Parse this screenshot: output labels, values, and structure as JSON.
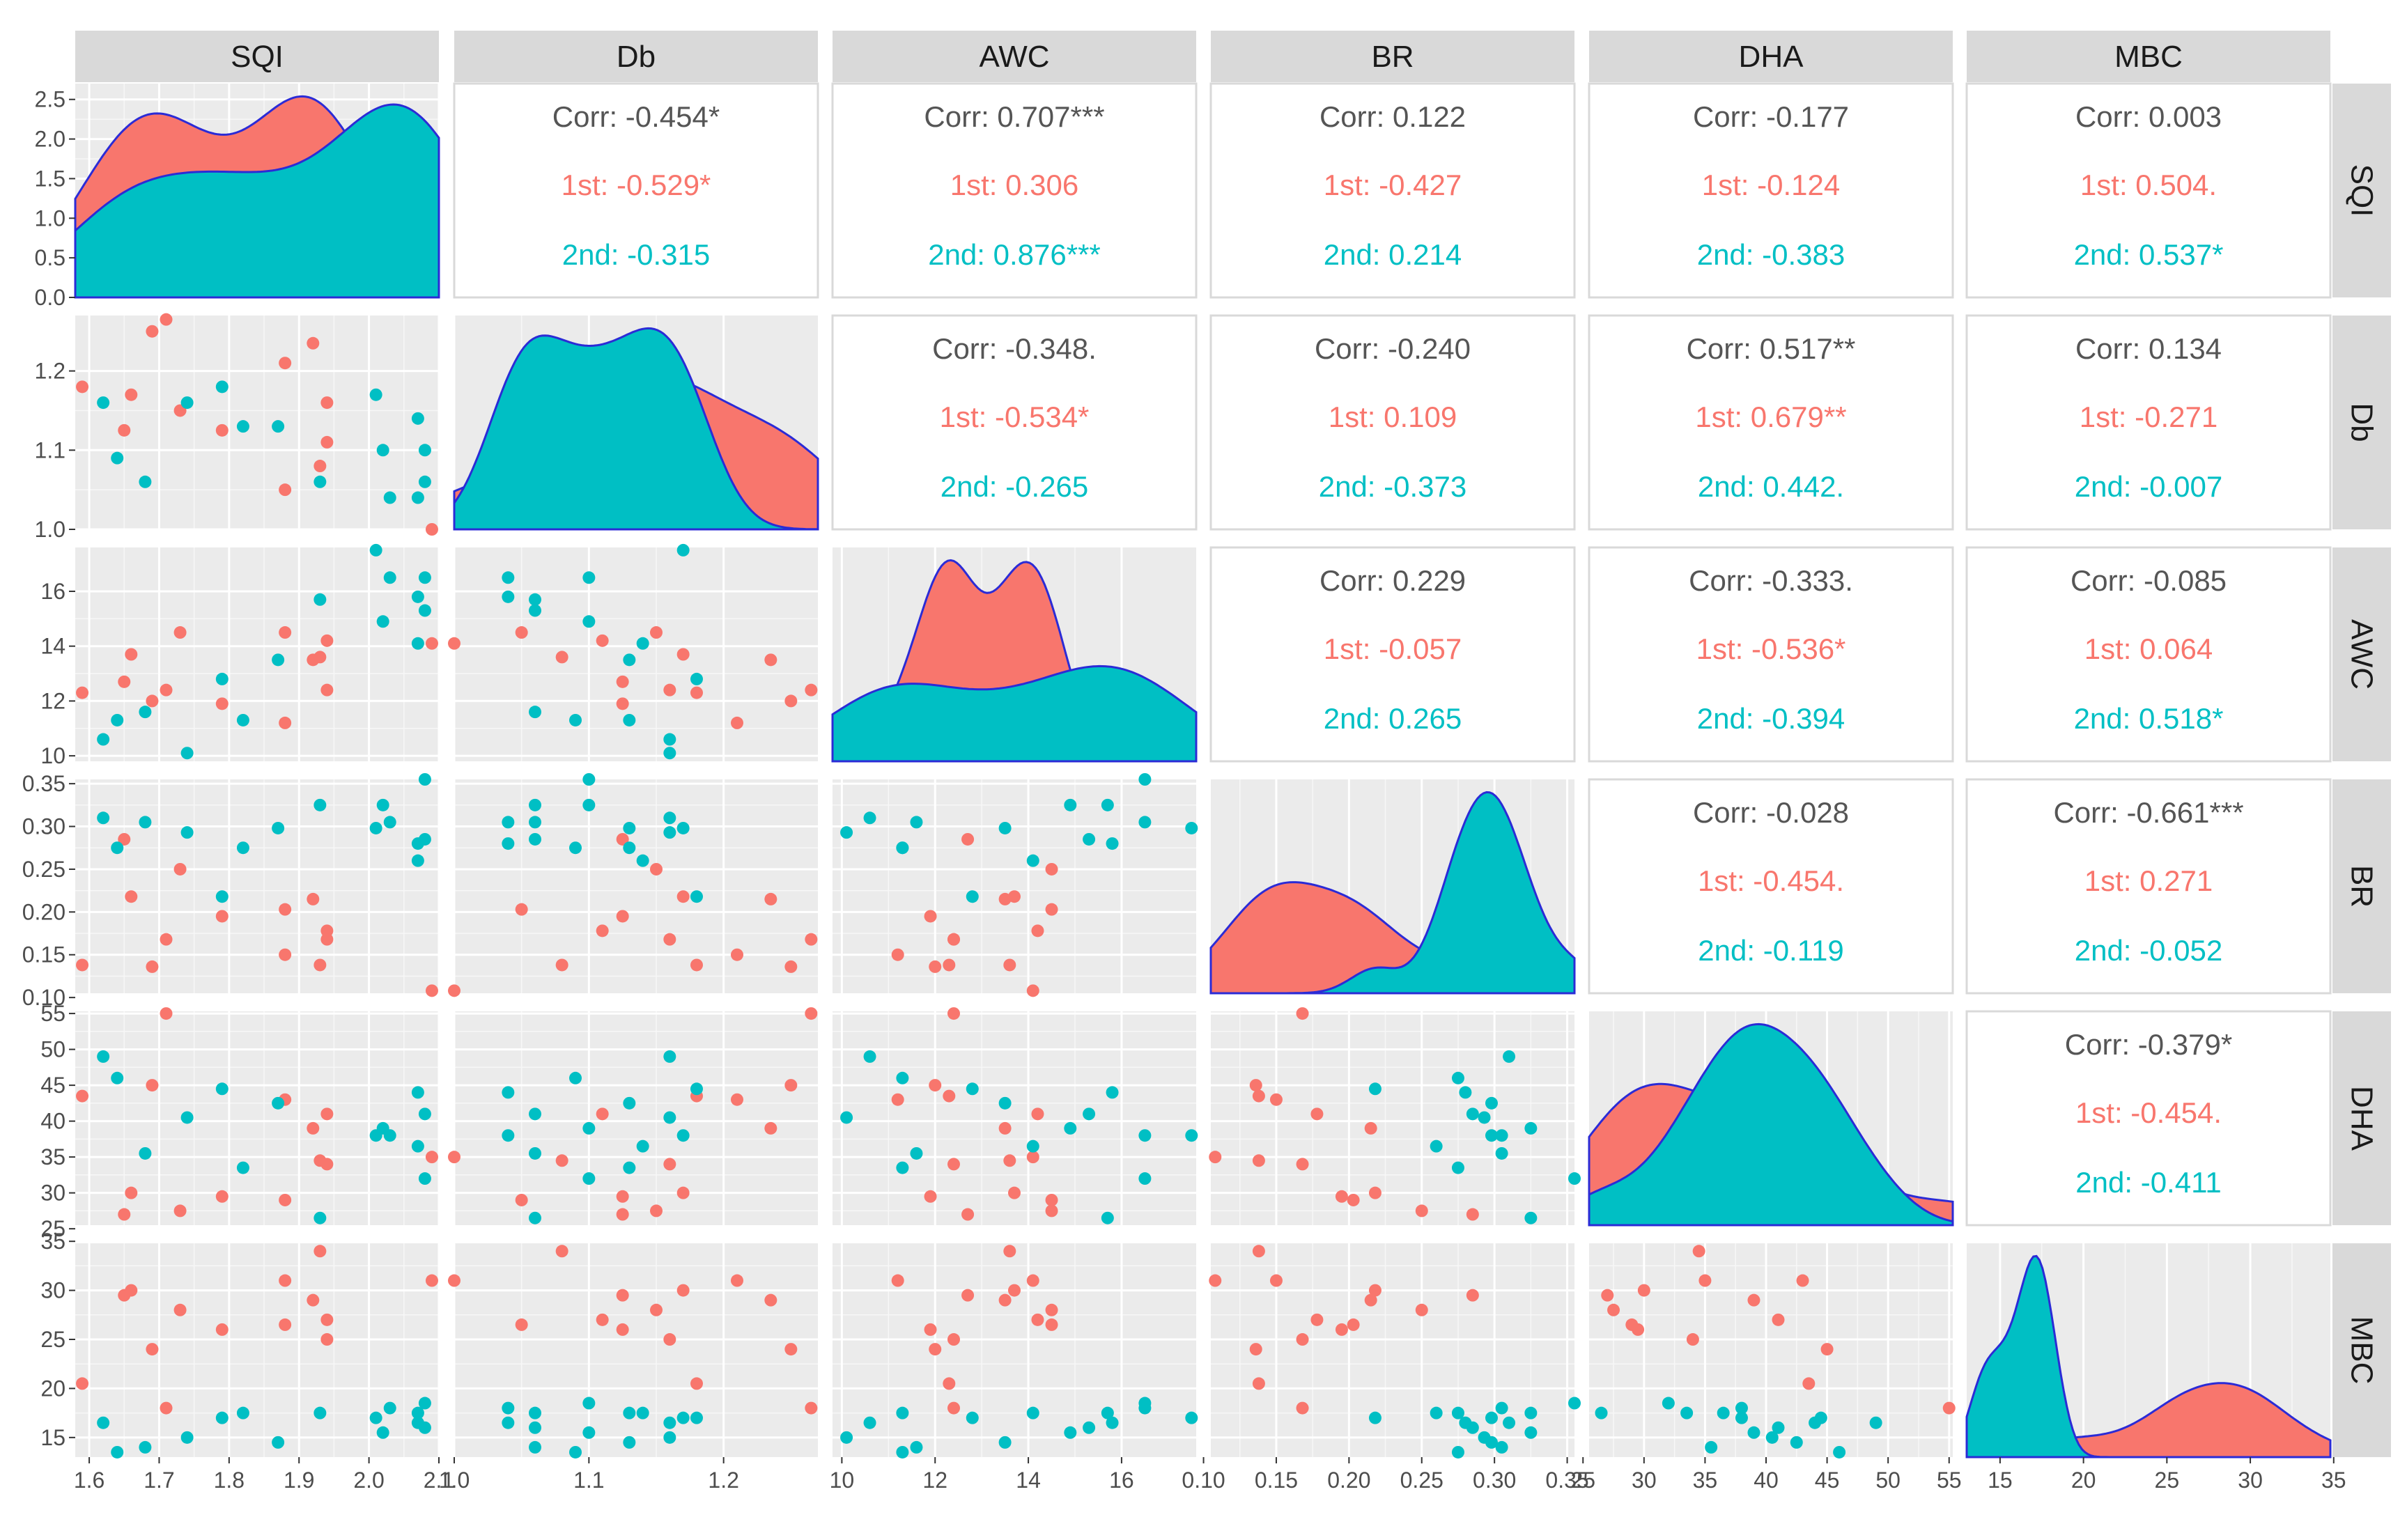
{
  "chart_data": {
    "type": "scatter-matrix",
    "title": "",
    "variables": [
      "SQI",
      "Db",
      "AWC",
      "BR",
      "DHA",
      "MBC"
    ],
    "groups": [
      {
        "name": "1st",
        "color": "#F8766D"
      },
      {
        "name": "2nd",
        "color": "#00BFC4"
      }
    ],
    "ranges": {
      "SQI": [
        1.58,
        2.1
      ],
      "Db": [
        1.0,
        1.27
      ],
      "AWC": [
        9.8,
        17.6
      ],
      "BR": [
        0.105,
        0.355
      ],
      "DHA": [
        25.5,
        55.3
      ],
      "MBC": [
        13.0,
        34.8
      ]
    },
    "axis_ticks": {
      "SQI": [
        "1.6",
        "1.7",
        "1.8",
        "1.9",
        "2.0",
        "2.1"
      ],
      "Db": [
        "1.0",
        "1.1",
        "1.2"
      ],
      "AWC": [
        "10",
        "12",
        "14",
        "16"
      ],
      "BR": [
        "0.10",
        "0.15",
        "0.20",
        "0.25",
        "0.30",
        "0.35"
      ],
      "DHA": [
        "25",
        "30",
        "35",
        "40",
        "45",
        "50",
        "55"
      ],
      "MBC": [
        "15",
        "20",
        "25",
        "30",
        "35"
      ]
    },
    "diag_y_ticks": [
      "0.0",
      "0.5",
      "1.0",
      "1.5",
      "2.0",
      "2.5"
    ],
    "diag_y_max": 2.7,
    "correlations": [
      {
        "row": 0,
        "col": 1,
        "corr": "Corr: -0.454*",
        "first": "1st: -0.529*",
        "second": "2nd: -0.315"
      },
      {
        "row": 0,
        "col": 2,
        "corr": "Corr: 0.707***",
        "first": "1st: 0.306",
        "second": "2nd: 0.876***"
      },
      {
        "row": 0,
        "col": 3,
        "corr": "Corr: 0.122",
        "first": "1st: -0.427",
        "second": "2nd: 0.214"
      },
      {
        "row": 0,
        "col": 4,
        "corr": "Corr: -0.177",
        "first": "1st: -0.124",
        "second": "2nd: -0.383"
      },
      {
        "row": 0,
        "col": 5,
        "corr": "Corr: 0.003",
        "first": "1st: 0.504.",
        "second": "2nd: 0.537*"
      },
      {
        "row": 1,
        "col": 2,
        "corr": "Corr: -0.348.",
        "first": "1st: -0.534*",
        "second": "2nd: -0.265"
      },
      {
        "row": 1,
        "col": 3,
        "corr": "Corr: -0.240",
        "first": "1st: 0.109",
        "second": "2nd: -0.373"
      },
      {
        "row": 1,
        "col": 4,
        "corr": "Corr: 0.517**",
        "first": "1st: 0.679**",
        "second": "2nd: 0.442."
      },
      {
        "row": 1,
        "col": 5,
        "corr": "Corr: 0.134",
        "first": "1st: -0.271",
        "second": "2nd: -0.007"
      },
      {
        "row": 2,
        "col": 3,
        "corr": "Corr: 0.229",
        "first": "1st: -0.057",
        "second": "2nd: 0.265"
      },
      {
        "row": 2,
        "col": 4,
        "corr": "Corr: -0.333.",
        "first": "1st: -0.536*",
        "second": "2nd: -0.394"
      },
      {
        "row": 2,
        "col": 5,
        "corr": "Corr: -0.085",
        "first": "1st: 0.064",
        "second": "2nd: 0.518*"
      },
      {
        "row": 3,
        "col": 4,
        "corr": "Corr: -0.028",
        "first": "1st: -0.454.",
        "second": "2nd: -0.119"
      },
      {
        "row": 3,
        "col": 5,
        "corr": "Corr: -0.661***",
        "first": "1st: 0.271",
        "second": "2nd: -0.052"
      },
      {
        "row": 4,
        "col": 5,
        "corr": "Corr: -0.379*",
        "first": "1st: -0.454.",
        "second": "2nd: -0.411"
      }
    ],
    "observations": {
      "1st": [
        {
          "SQI": 1.59,
          "Db": 1.18,
          "AWC": 12.3,
          "BR": 0.138,
          "DHA": 43.5,
          "MBC": 20.5
        },
        {
          "SQI": 1.65,
          "Db": 1.125,
          "AWC": 12.7,
          "BR": 0.285,
          "DHA": 27.0,
          "MBC": 29.5
        },
        {
          "SQI": 1.66,
          "Db": 1.17,
          "AWC": 13.7,
          "BR": 0.218,
          "DHA": 30.0,
          "MBC": 30.0
        },
        {
          "SQI": 1.69,
          "Db": 1.25,
          "AWC": 12.0,
          "BR": 0.136,
          "DHA": 45.0,
          "MBC": 24.0
        },
        {
          "SQI": 1.71,
          "Db": 1.265,
          "AWC": 12.4,
          "BR": 0.168,
          "DHA": 55.0,
          "MBC": 18.0
        },
        {
          "SQI": 1.73,
          "Db": 1.15,
          "AWC": 14.5,
          "BR": 0.25,
          "DHA": 27.5,
          "MBC": 28.0
        },
        {
          "SQI": 1.79,
          "Db": 1.125,
          "AWC": 11.9,
          "BR": 0.195,
          "DHA": 29.5,
          "MBC": 26.0
        },
        {
          "SQI": 1.88,
          "Db": 1.21,
          "AWC": 11.2,
          "BR": 0.15,
          "DHA": 43.0,
          "MBC": 31.0
        },
        {
          "SQI": 1.88,
          "Db": 1.05,
          "AWC": 14.5,
          "BR": 0.203,
          "DHA": 29.0,
          "MBC": 26.5
        },
        {
          "SQI": 1.92,
          "Db": 1.235,
          "AWC": 13.5,
          "BR": 0.215,
          "DHA": 39.0,
          "MBC": 29.0
        },
        {
          "SQI": 1.93,
          "Db": 1.08,
          "AWC": 13.6,
          "BR": 0.138,
          "DHA": 34.5,
          "MBC": 34.0
        },
        {
          "SQI": 1.94,
          "Db": 1.11,
          "AWC": 14.2,
          "BR": 0.178,
          "DHA": 41.0,
          "MBC": 27.0
        },
        {
          "SQI": 1.94,
          "Db": 1.16,
          "AWC": 12.4,
          "BR": 0.168,
          "DHA": 34.0,
          "MBC": 25.0
        },
        {
          "SQI": 2.09,
          "Db": 1.0,
          "AWC": 14.1,
          "BR": 0.108,
          "DHA": 35.0,
          "MBC": 31.0
        }
      ],
      "2nd": [
        {
          "SQI": 1.62,
          "Db": 1.16,
          "AWC": 10.6,
          "BR": 0.31,
          "DHA": 49.0,
          "MBC": 16.5
        },
        {
          "SQI": 1.64,
          "Db": 1.09,
          "AWC": 11.3,
          "BR": 0.275,
          "DHA": 46.0,
          "MBC": 13.5
        },
        {
          "SQI": 1.68,
          "Db": 1.06,
          "AWC": 11.6,
          "BR": 0.305,
          "DHA": 35.5,
          "MBC": 14.0
        },
        {
          "SQI": 1.74,
          "Db": 1.16,
          "AWC": 10.1,
          "BR": 0.293,
          "DHA": 40.5,
          "MBC": 15.0
        },
        {
          "SQI": 1.79,
          "Db": 1.18,
          "AWC": 12.8,
          "BR": 0.218,
          "DHA": 44.5,
          "MBC": 17.0
        },
        {
          "SQI": 1.82,
          "Db": 1.13,
          "AWC": 11.3,
          "BR": 0.275,
          "DHA": 33.5,
          "MBC": 17.5
        },
        {
          "SQI": 1.87,
          "Db": 1.13,
          "AWC": 13.5,
          "BR": 0.298,
          "DHA": 42.5,
          "MBC": 14.5
        },
        {
          "SQI": 1.93,
          "Db": 1.06,
          "AWC": 15.7,
          "BR": 0.325,
          "DHA": 26.5,
          "MBC": 17.5
        },
        {
          "SQI": 2.01,
          "Db": 1.17,
          "AWC": 17.5,
          "BR": 0.298,
          "DHA": 38.0,
          "MBC": 17.0
        },
        {
          "SQI": 2.02,
          "Db": 1.1,
          "AWC": 14.9,
          "BR": 0.325,
          "DHA": 39.0,
          "MBC": 15.5
        },
        {
          "SQI": 2.03,
          "Db": 1.04,
          "AWC": 16.5,
          "BR": 0.305,
          "DHA": 38.0,
          "MBC": 18.0
        },
        {
          "SQI": 2.07,
          "Db": 1.14,
          "AWC": 14.1,
          "BR": 0.26,
          "DHA": 36.5,
          "MBC": 17.5
        },
        {
          "SQI": 2.07,
          "Db": 1.04,
          "AWC": 15.8,
          "BR": 0.28,
          "DHA": 44.0,
          "MBC": 16.5
        },
        {
          "SQI": 2.08,
          "Db": 1.1,
          "AWC": 16.5,
          "BR": 0.355,
          "DHA": 32.0,
          "MBC": 18.5
        },
        {
          "SQI": 2.08,
          "Db": 1.06,
          "AWC": 15.3,
          "BR": 0.285,
          "DHA": 41.0,
          "MBC": 16.0
        }
      ]
    }
  }
}
